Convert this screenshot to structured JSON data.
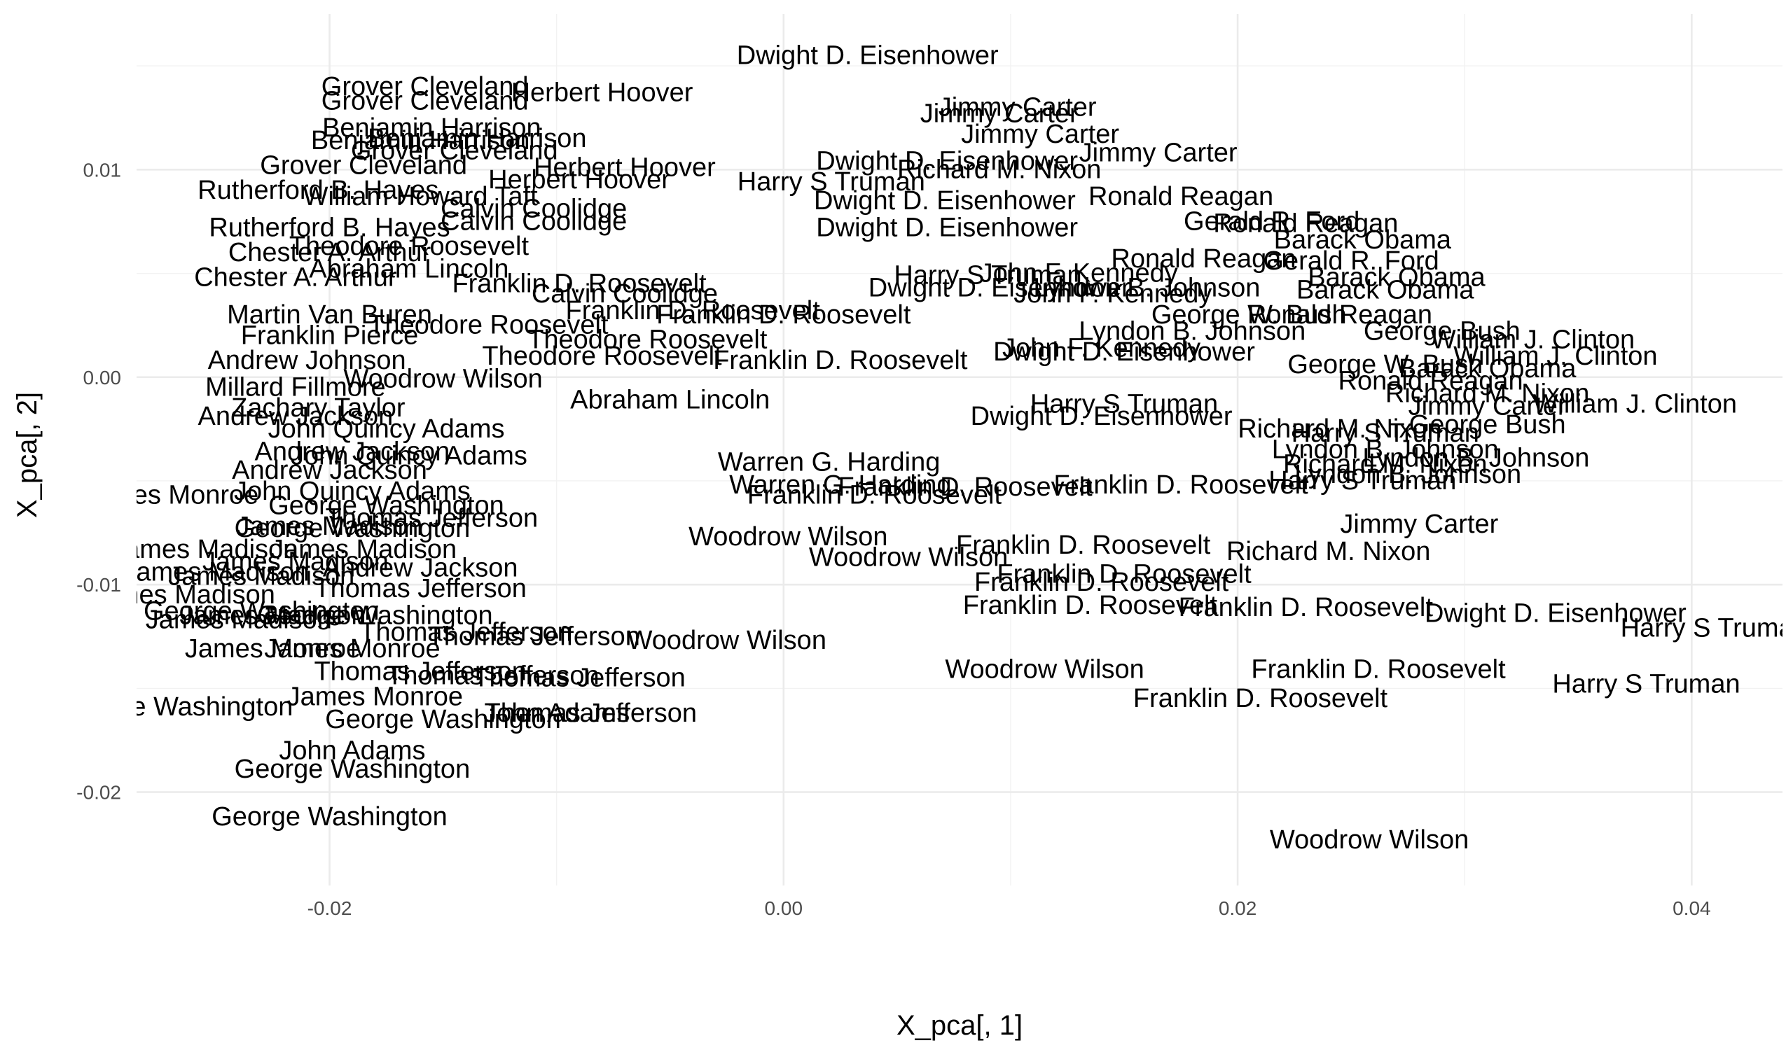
{
  "chart_data": {
    "type": "scatter",
    "title": "",
    "xlabel": "X_pca[, 1]",
    "ylabel": "X_pca[, 2]",
    "xlim": [
      -0.0285,
      0.044
    ],
    "ylim": [
      -0.0245,
      0.0175
    ],
    "x_ticks": [
      -0.02,
      0.0,
      0.02,
      0.04
    ],
    "x_tick_labels": [
      "-0.02",
      "0.00",
      "0.02",
      "0.04"
    ],
    "y_ticks": [
      -0.02,
      -0.01,
      0.0,
      0.01
    ],
    "y_tick_labels": [
      "-0.02",
      "-0.01",
      "0.00",
      "0.01"
    ],
    "grid": true,
    "legend": "none",
    "points": [
      {
        "label": "Dwight D. Eisenhower",
        "x": 0.0037,
        "y": 0.0155
      },
      {
        "label": "Grover Cleveland",
        "x": -0.0158,
        "y": 0.014
      },
      {
        "label": "Grover Cleveland",
        "x": -0.0158,
        "y": 0.0133
      },
      {
        "label": "Herbert Hoover",
        "x": -0.008,
        "y": 0.0137
      },
      {
        "label": "Jimmy Carter",
        "x": 0.0103,
        "y": 0.013
      },
      {
        "label": "Jimmy Carter",
        "x": 0.0095,
        "y": 0.0127
      },
      {
        "label": "Benjamin Harrison",
        "x": -0.0155,
        "y": 0.012
      },
      {
        "label": "Jimmy Carter",
        "x": 0.0113,
        "y": 0.0117
      },
      {
        "label": "Benjamin Harrison",
        "x": -0.0135,
        "y": 0.0115
      },
      {
        "label": "Benjamin Harrison",
        "x": -0.016,
        "y": 0.0114
      },
      {
        "label": "Grover Cleveland",
        "x": -0.0145,
        "y": 0.0109
      },
      {
        "label": "Jimmy Carter",
        "x": 0.0165,
        "y": 0.0108
      },
      {
        "label": "Dwight D. Eisenhower",
        "x": 0.0072,
        "y": 0.0104
      },
      {
        "label": "Grover Cleveland",
        "x": -0.0185,
        "y": 0.0102
      },
      {
        "label": "Herbert Hoover",
        "x": -0.007,
        "y": 0.0101
      },
      {
        "label": "Richard M. Nixon",
        "x": 0.0095,
        "y": 0.01
      },
      {
        "label": "Herbert Hoover",
        "x": -0.009,
        "y": 0.0095
      },
      {
        "label": "Harry S Truman",
        "x": 0.0021,
        "y": 0.0094
      },
      {
        "label": "Rutherford B. Hayes",
        "x": -0.0205,
        "y": 0.009
      },
      {
        "label": "William Howard Taft",
        "x": -0.016,
        "y": 0.0087
      },
      {
        "label": "Ronald Reagan",
        "x": 0.0175,
        "y": 0.0087
      },
      {
        "label": "Calvin Coolidge",
        "x": -0.011,
        "y": 0.0081
      },
      {
        "label": "Dwight D. Eisenhower",
        "x": 0.0071,
        "y": 0.0085
      },
      {
        "label": "Dwight D. Eisenhower",
        "x": 0.0072,
        "y": 0.0072
      },
      {
        "label": "Ronald Reagan",
        "x": 0.023,
        "y": 0.0074
      },
      {
        "label": "Gerald R. Ford",
        "x": 0.0215,
        "y": 0.0075
      },
      {
        "label": "Calvin Coolidge",
        "x": -0.011,
        "y": 0.0075
      },
      {
        "label": "Rutherford B. Hayes",
        "x": -0.02,
        "y": 0.0072
      },
      {
        "label": "Barack Obama",
        "x": 0.0255,
        "y": 0.0066
      },
      {
        "label": "Theodore Roosevelt",
        "x": -0.0165,
        "y": 0.0063
      },
      {
        "label": "Chester A. Arthur",
        "x": -0.02,
        "y": 0.006
      },
      {
        "label": "Ronald Reagan",
        "x": 0.0185,
        "y": 0.0057
      },
      {
        "label": "Gerald R. Ford",
        "x": 0.025,
        "y": 0.0056
      },
      {
        "label": "Abraham Lincoln",
        "x": -0.0165,
        "y": 0.0052
      },
      {
        "label": "Harry S Truman",
        "x": 0.009,
        "y": 0.0049
      },
      {
        "label": "John F. Kennedy",
        "x": 0.013,
        "y": 0.005
      },
      {
        "label": "Barack Obama",
        "x": 0.027,
        "y": 0.0048
      },
      {
        "label": "Chester A. Arthur",
        "x": -0.0215,
        "y": 0.0048
      },
      {
        "label": "Franklin D. Roosevelt",
        "x": -0.009,
        "y": 0.0045
      },
      {
        "label": "Dwight D. Eisenhower",
        "x": 0.0095,
        "y": 0.0043
      },
      {
        "label": "Calvin Coolidge",
        "x": -0.007,
        "y": 0.004
      },
      {
        "label": "Lyndon B. Johnson",
        "x": 0.016,
        "y": 0.0043
      },
      {
        "label": "Barack Obama",
        "x": 0.0265,
        "y": 0.0042
      },
      {
        "label": "John F. Kennedy",
        "x": 0.0145,
        "y": 0.004
      },
      {
        "label": "Martin Van Buren",
        "x": -0.02,
        "y": 0.003
      },
      {
        "label": "Franklin D. Roosevelt",
        "x": -0.004,
        "y": 0.0032
      },
      {
        "label": "Franklin D. Roosevelt",
        "x": 0.0,
        "y": 0.003
      },
      {
        "label": "Ronald Reagan",
        "x": 0.0245,
        "y": 0.003
      },
      {
        "label": "George W. Bush",
        "x": 0.0205,
        "y": 0.003
      },
      {
        "label": "Theodore Roosevelt",
        "x": -0.013,
        "y": 0.0025
      },
      {
        "label": "Franklin Pierce",
        "x": -0.02,
        "y": 0.002
      },
      {
        "label": "Theodore Roosevelt",
        "x": -0.006,
        "y": 0.0018
      },
      {
        "label": "William J. Clinton",
        "x": 0.033,
        "y": 0.0018
      },
      {
        "label": "George Bush",
        "x": 0.029,
        "y": 0.0022
      },
      {
        "label": "Lyndon B. Johnson",
        "x": 0.018,
        "y": 0.0022
      },
      {
        "label": "John F. Kennedy",
        "x": 0.014,
        "y": 0.0014
      },
      {
        "label": "Dwight D. Eisenhower",
        "x": 0.015,
        "y": 0.0012
      },
      {
        "label": "William J. Clinton",
        "x": 0.034,
        "y": 0.001
      },
      {
        "label": "Andrew Johnson",
        "x": -0.021,
        "y": 0.0008
      },
      {
        "label": "Theodore Roosevelt",
        "x": -0.008,
        "y": 0.001
      },
      {
        "label": "Franklin D. Roosevelt",
        "x": 0.0025,
        "y": 0.0008
      },
      {
        "label": "George W. Bush",
        "x": 0.0265,
        "y": 0.0006
      },
      {
        "label": "Barack Obama",
        "x": 0.031,
        "y": 0.0004
      },
      {
        "label": "Woodrow Wilson",
        "x": -0.015,
        "y": -0.0001
      },
      {
        "label": "Millard Fillmore",
        "x": -0.0215,
        "y": -0.0005
      },
      {
        "label": "Ronald Reagan",
        "x": 0.0285,
        "y": -0.0002
      },
      {
        "label": "Abraham Lincoln",
        "x": -0.005,
        "y": -0.0011
      },
      {
        "label": "Richard M. Nixon",
        "x": 0.031,
        "y": -0.0008
      },
      {
        "label": "Zachary Taylor",
        "x": -0.0205,
        "y": -0.0015
      },
      {
        "label": "Jimmy Carter",
        "x": 0.031,
        "y": -0.0014
      },
      {
        "label": "William J. Clinton",
        "x": 0.0375,
        "y": -0.0013
      },
      {
        "label": "Harry S Truman",
        "x": 0.015,
        "y": -0.0013
      },
      {
        "label": "Andrew Jackson",
        "x": -0.0215,
        "y": -0.0019
      },
      {
        "label": "Dwight D. Eisenhower",
        "x": 0.014,
        "y": -0.0019
      },
      {
        "label": "George Bush",
        "x": 0.031,
        "y": -0.0023
      },
      {
        "label": "John Quincy Adams",
        "x": -0.0175,
        "y": -0.0025
      },
      {
        "label": "Harry S Truman",
        "x": 0.0265,
        "y": -0.0027
      },
      {
        "label": "Richard M. Nixon",
        "x": 0.0245,
        "y": -0.0025
      },
      {
        "label": "Lyndon B. Johnson",
        "x": 0.0265,
        "y": -0.0035
      },
      {
        "label": "Andrew Jackson",
        "x": -0.019,
        "y": -0.0036
      },
      {
        "label": "John Quincy Adams",
        "x": -0.0165,
        "y": -0.0038
      },
      {
        "label": "Warren G. Harding",
        "x": 0.002,
        "y": -0.0041
      },
      {
        "label": "Lyndon B. Johnson",
        "x": 0.0305,
        "y": -0.0039
      },
      {
        "label": "Andrew Jackson",
        "x": -0.02,
        "y": -0.0045
      },
      {
        "label": "Richard M. Nixon",
        "x": 0.0265,
        "y": -0.0042
      },
      {
        "label": "Harry S Truman",
        "x": 0.0255,
        "y": -0.005
      },
      {
        "label": "Lyndon B. Johnson",
        "x": 0.0275,
        "y": -0.0047
      },
      {
        "label": "Warren G. Harding",
        "x": 0.0025,
        "y": -0.0052
      },
      {
        "label": "Franklin D. Roosevelt",
        "x": 0.008,
        "y": -0.0053
      },
      {
        "label": "Franklin D. Roosevelt",
        "x": 0.0175,
        "y": -0.0052
      },
      {
        "label": "John Quincy Adams",
        "x": -0.019,
        "y": -0.0055
      },
      {
        "label": "Franklin D. Roosevelt",
        "x": 0.004,
        "y": -0.0057
      },
      {
        "label": "James Monroe",
        "x": -0.027,
        "y": -0.0057
      },
      {
        "label": "George Washington",
        "x": -0.0175,
        "y": -0.0062
      },
      {
        "label": "Thomas Jefferson",
        "x": -0.0155,
        "y": -0.0068
      },
      {
        "label": "James Madison",
        "x": -0.02,
        "y": -0.0072
      },
      {
        "label": "George Washington",
        "x": -0.019,
        "y": -0.0073
      },
      {
        "label": "Jimmy Carter",
        "x": 0.028,
        "y": -0.0071
      },
      {
        "label": "Woodrow Wilson",
        "x": 0.0002,
        "y": -0.0077
      },
      {
        "label": "Franklin D. Roosevelt",
        "x": 0.0132,
        "y": -0.0081
      },
      {
        "label": "James Madison",
        "x": -0.0255,
        "y": -0.0083
      },
      {
        "label": "James Madison",
        "x": -0.0185,
        "y": -0.0083
      },
      {
        "label": "Richard M. Nixon",
        "x": 0.024,
        "y": -0.0084
      },
      {
        "label": "Woodrow Wilson",
        "x": 0.0055,
        "y": -0.0087
      },
      {
        "label": "James Madison",
        "x": -0.0215,
        "y": -0.0089
      },
      {
        "label": "James Madison",
        "x": -0.025,
        "y": -0.0094
      },
      {
        "label": "Andrew Jackson",
        "x": -0.016,
        "y": -0.0092
      },
      {
        "label": "Franklin D. Roosevelt",
        "x": 0.015,
        "y": -0.0095
      },
      {
        "label": "James Madison",
        "x": -0.023,
        "y": -0.0096
      },
      {
        "label": "Franklin D. Roosevelt",
        "x": 0.014,
        "y": -0.0099
      },
      {
        "label": "Thomas Jefferson",
        "x": -0.016,
        "y": -0.0102
      },
      {
        "label": "James Madison",
        "x": -0.0265,
        "y": -0.0105
      },
      {
        "label": "Franklin D. Roosevelt",
        "x": 0.0135,
        "y": -0.011
      },
      {
        "label": "Franklin D. Roosevelt",
        "x": 0.023,
        "y": -0.0111
      },
      {
        "label": "Dwight D. Eisenhower",
        "x": 0.034,
        "y": -0.0114
      },
      {
        "label": "George Washington",
        "x": -0.023,
        "y": -0.0113
      },
      {
        "label": "James Madison",
        "x": -0.0225,
        "y": -0.0115
      },
      {
        "label": "George Washington",
        "x": -0.018,
        "y": -0.0115
      },
      {
        "label": "James Madison",
        "x": -0.024,
        "y": -0.0117
      },
      {
        "label": "Harry S Truman",
        "x": 0.041,
        "y": -0.0121
      },
      {
        "label": "Thomas Jefferson",
        "x": -0.014,
        "y": -0.0123
      },
      {
        "label": "Thomas Jefferson",
        "x": -0.011,
        "y": -0.0125
      },
      {
        "label": "Woodrow Wilson",
        "x": -0.0025,
        "y": -0.0127
      },
      {
        "label": "James Monroe",
        "x": -0.0225,
        "y": -0.0131
      },
      {
        "label": "James Monroe",
        "x": -0.019,
        "y": -0.0131
      },
      {
        "label": "Woodrow Wilson",
        "x": 0.0115,
        "y": -0.0141
      },
      {
        "label": "Franklin D. Roosevelt",
        "x": 0.0262,
        "y": -0.0141
      },
      {
        "label": "Thomas Jefferson",
        "x": -0.016,
        "y": -0.0142
      },
      {
        "label": "Thomas Jefferson",
        "x": -0.0128,
        "y": -0.0144
      },
      {
        "label": "Thomas Jefferson",
        "x": -0.009,
        "y": -0.0145
      },
      {
        "label": "Harry S Truman",
        "x": 0.038,
        "y": -0.0148
      },
      {
        "label": "Franklin D. Roosevelt",
        "x": 0.021,
        "y": -0.0155
      },
      {
        "label": "James Monroe",
        "x": -0.018,
        "y": -0.0154
      },
      {
        "label": "George Washington",
        "x": -0.0268,
        "y": -0.0159
      },
      {
        "label": "John Adams",
        "x": -0.01,
        "y": -0.0162
      },
      {
        "label": "Thomas Jefferson",
        "x": -0.0085,
        "y": -0.0162
      },
      {
        "label": "George Washington",
        "x": -0.015,
        "y": -0.0165
      },
      {
        "label": "John Adams",
        "x": -0.019,
        "y": -0.018
      },
      {
        "label": "George Washington",
        "x": -0.019,
        "y": -0.0189
      },
      {
        "label": "George Washington",
        "x": -0.02,
        "y": -0.0212
      },
      {
        "label": "Woodrow Wilson",
        "x": 0.0258,
        "y": -0.0223
      }
    ]
  }
}
